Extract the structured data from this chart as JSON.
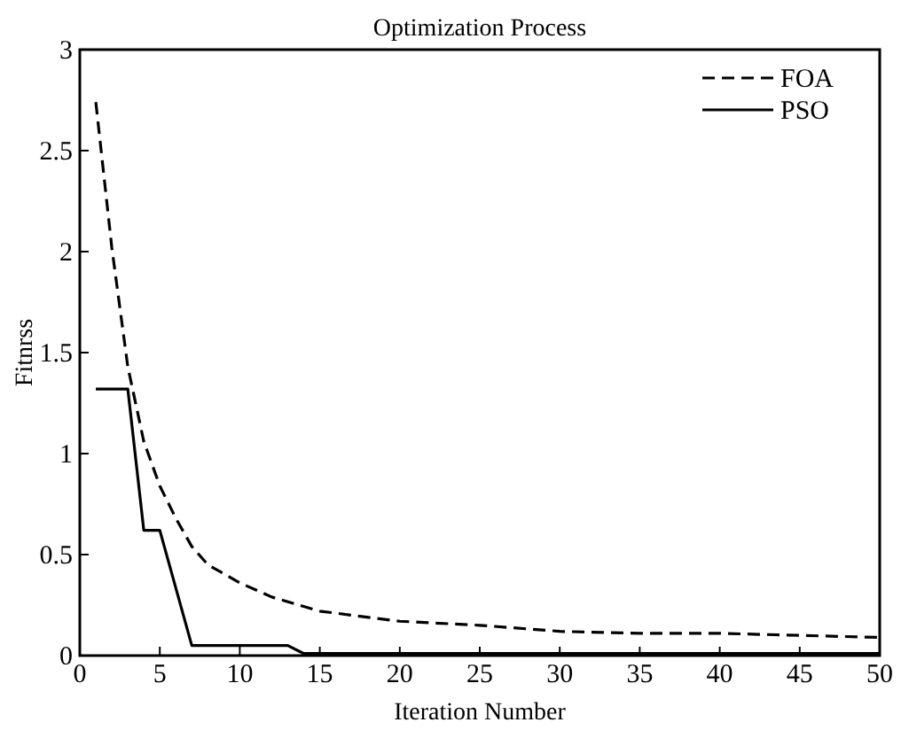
{
  "chart_data": {
    "type": "line",
    "title": "Optimization Process",
    "xlabel": "Iteration Number",
    "ylabel": "Fitnrss",
    "xlim": [
      0,
      50
    ],
    "xticks": [
      0,
      5,
      10,
      15,
      20,
      25,
      30,
      35,
      40,
      45,
      50
    ],
    "ylim": [
      0,
      3
    ],
    "yticks": [
      0,
      0.5,
      1,
      1.5,
      2,
      2.5,
      3
    ],
    "grid": false,
    "legend": "top right",
    "series": [
      {
        "name": "FOA",
        "color": "#000000",
        "line_style": "dashed",
        "x": [
          1,
          2,
          3,
          4,
          5,
          6,
          7,
          8,
          10,
          12,
          15,
          20,
          25,
          30,
          35,
          40,
          45,
          50
        ],
        "values": [
          2.74,
          2.02,
          1.43,
          1.06,
          0.84,
          0.68,
          0.54,
          0.45,
          0.36,
          0.29,
          0.22,
          0.17,
          0.15,
          0.12,
          0.11,
          0.11,
          0.1,
          0.09
        ]
      },
      {
        "name": "PSO",
        "color": "#000000",
        "line_style": "solid",
        "x": [
          1,
          3,
          4,
          5,
          7,
          13,
          14,
          50
        ],
        "values": [
          1.32,
          1.32,
          0.62,
          0.62,
          0.05,
          0.05,
          0.01,
          0.01
        ]
      }
    ]
  }
}
